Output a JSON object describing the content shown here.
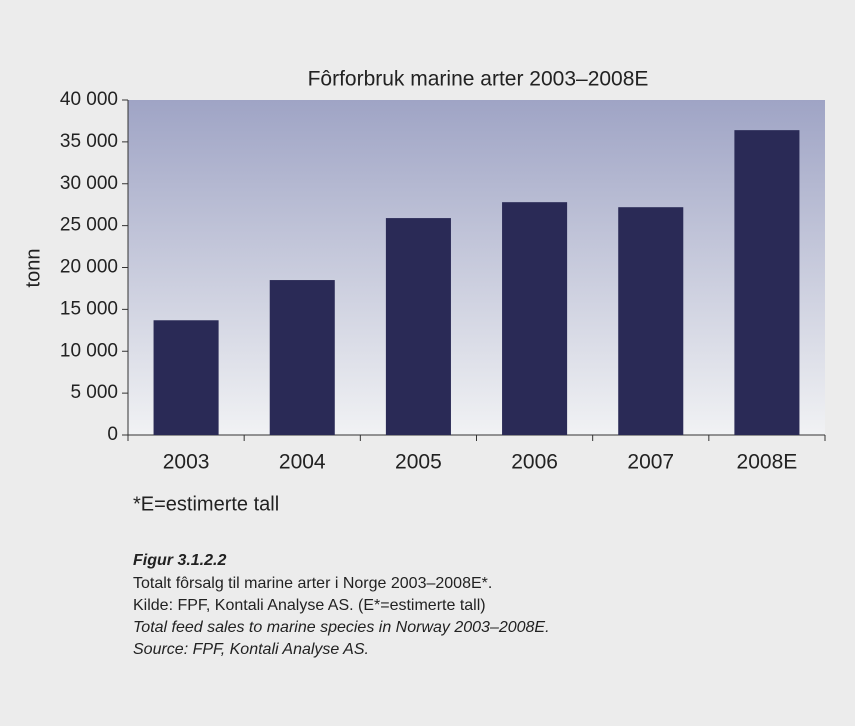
{
  "chart_data": {
    "type": "bar",
    "title": "Fôrforbruk marine arter 2003–2008E",
    "y_label": "tonn",
    "categories": [
      "2003",
      "2004",
      "2005",
      "2006",
      "2007",
      "2008E"
    ],
    "values": [
      13700,
      18500,
      25900,
      27800,
      27200,
      36400
    ],
    "color": "#2a2a56",
    "ylim": [
      0,
      40000
    ],
    "yticks": [
      0,
      {
        "value": 5000,
        "label": "5 000"
      },
      {
        "value": 10000,
        "label": "10 000"
      },
      {
        "value": 15000,
        "label": "15 000"
      },
      {
        "value": 20000,
        "label": "20 000"
      },
      {
        "value": 25000,
        "label": "25 000"
      },
      {
        "value": 30000,
        "label": "30 000"
      },
      {
        "value": 35000,
        "label": "35 000"
      },
      {
        "value": 40000,
        "label": "40 000"
      }
    ],
    "grid": false,
    "footnote": "*E=estimerte tall",
    "caption": {
      "title": "Figur 3.1.2.2",
      "lines": [
        "Totalt fôrsalg til marine arter i Norge 2003–2008E*.",
        "Kilde: FPF, Kontali Analyse AS. (E*=estimerte tall)"
      ],
      "english_lines": [
        "Total feed sales to marine species in Norway 2003–2008E.",
        "Source: FPF, Kontali Analyse AS."
      ]
    }
  }
}
